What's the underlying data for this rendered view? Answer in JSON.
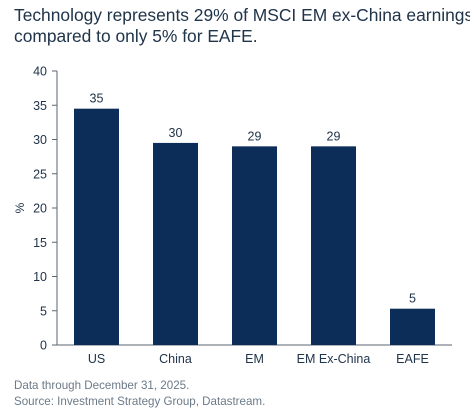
{
  "title_lines": [
    "Technology represents 29% of MSCI EM ex-China earnings,",
    "compared to only 5% for EAFE."
  ],
  "notes": [
    "Data through December 31, 2025.",
    "Source: Investment Strategy Group, Datastream."
  ],
  "colors": {
    "bar": "#0b2d58",
    "text": "#20344a",
    "axis": "#5a6470"
  },
  "chart_data": {
    "type": "bar",
    "categories": [
      "US",
      "China",
      "EM",
      "EM Ex-China",
      "EAFE"
    ],
    "values": [
      34.5,
      29.5,
      29,
      29,
      5.3
    ],
    "data_labels": [
      "35",
      "30",
      "29",
      "29",
      "5"
    ],
    "ylabel": "%",
    "xlabel": "",
    "ylim": [
      0,
      40
    ],
    "yticks": [
      0,
      5,
      10,
      15,
      20,
      25,
      30,
      35,
      40
    ],
    "grid": false,
    "legend": "none"
  }
}
